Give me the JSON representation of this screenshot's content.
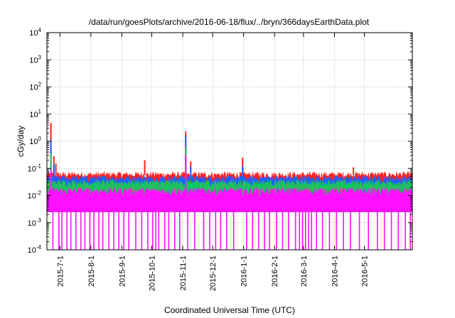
{
  "chart_data": {
    "type": "line",
    "title": "/data/run/goesPlots/archive/2016-06-18/flux/../bryn/366daysEarthData.plot",
    "xlabel": "Coordinated Universal Time (UTC)",
    "ylabel": "cGy/day",
    "y_scale": "log",
    "ylim": [
      0.0001,
      10000
    ],
    "xlim": [
      "2015-06-18",
      "2016-06-18"
    ],
    "grid": true,
    "legend": "none",
    "y_ticks": [
      {
        "value": 0.0001,
        "base": "10",
        "exp": "-4"
      },
      {
        "value": 0.001,
        "base": "10",
        "exp": "-3"
      },
      {
        "value": 0.01,
        "base": "10",
        "exp": "-2"
      },
      {
        "value": 0.1,
        "base": "10",
        "exp": "-1"
      },
      {
        "value": 1,
        "base": "10",
        "exp": "0"
      },
      {
        "value": 10,
        "base": "10",
        "exp": "1"
      },
      {
        "value": 100,
        "base": "10",
        "exp": "2"
      },
      {
        "value": 1000,
        "base": "10",
        "exp": "3"
      },
      {
        "value": 10000,
        "base": "10",
        "exp": "4"
      }
    ],
    "x_ticks": [
      {
        "label": "2015-7-1",
        "date": "2015-07-01"
      },
      {
        "label": "2015-8-1",
        "date": "2015-08-01"
      },
      {
        "label": "2015-9-1",
        "date": "2015-09-01"
      },
      {
        "label": "2015-10-1",
        "date": "2015-10-01"
      },
      {
        "label": "2015-11-1",
        "date": "2015-11-01"
      },
      {
        "label": "2015-12-1",
        "date": "2015-12-01"
      },
      {
        "label": "2016-1-1",
        "date": "2016-01-01"
      },
      {
        "label": "2016-2-1",
        "date": "2016-02-01"
      },
      {
        "label": "2016-3-1",
        "date": "2016-03-01"
      },
      {
        "label": "2016-4-1",
        "date": "2016-04-01"
      },
      {
        "label": "2016-5-1",
        "date": "2016-05-01"
      }
    ],
    "series": [
      {
        "color": "#ff2020",
        "baseline": 0.055,
        "spikes": [
          {
            "date": "2015-06-22",
            "value": 4.8
          },
          {
            "date": "2015-06-25",
            "value": 0.28
          },
          {
            "date": "2015-06-27",
            "value": 0.15
          },
          {
            "date": "2015-09-24",
            "value": 0.2
          },
          {
            "date": "2015-11-04",
            "value": 2.3
          },
          {
            "date": "2015-11-09",
            "value": 0.18
          },
          {
            "date": "2015-12-31",
            "value": 0.25
          },
          {
            "date": "2016-04-20",
            "value": 0.11
          }
        ]
      },
      {
        "color": "#2060ff",
        "baseline": 0.04,
        "spikes": [
          {
            "date": "2015-06-22",
            "value": 1.1
          },
          {
            "date": "2015-06-25",
            "value": 0.15
          },
          {
            "date": "2015-11-04",
            "value": 1.6
          },
          {
            "date": "2015-11-09",
            "value": 0.12
          },
          {
            "date": "2015-12-31",
            "value": 0.12
          }
        ]
      },
      {
        "color": "#20c060",
        "baseline": 0.028,
        "spikes": [
          {
            "date": "2015-06-22",
            "value": 0.35
          },
          {
            "date": "2015-11-04",
            "value": 0.6
          }
        ]
      },
      {
        "color": "#ff10ff",
        "baseline": 0.012,
        "floor": 0.0025,
        "spikes": [
          {
            "date": "2015-06-22",
            "value": 0.09
          },
          {
            "date": "2015-11-04",
            "value": 0.3
          }
        ],
        "dropouts": [
          "2015-06-24",
          "2015-06-30",
          "2015-07-03",
          "2015-07-08",
          "2015-07-12",
          "2015-07-17",
          "2015-07-22",
          "2015-07-26",
          "2015-07-31",
          "2015-08-04",
          "2015-08-09",
          "2015-08-13",
          "2015-08-19",
          "2015-08-24",
          "2015-08-29",
          "2015-09-03",
          "2015-09-08",
          "2015-09-15",
          "2015-09-21",
          "2015-09-27",
          "2015-10-02",
          "2015-10-05",
          "2015-10-08",
          "2015-10-14",
          "2015-10-18",
          "2015-10-24",
          "2015-10-29",
          "2015-11-06",
          "2015-11-13",
          "2015-11-22",
          "2015-11-28",
          "2015-12-04",
          "2015-12-09",
          "2015-12-15",
          "2015-12-22",
          "2016-01-04",
          "2016-01-10",
          "2016-01-16",
          "2016-01-22",
          "2016-01-27",
          "2016-02-03",
          "2016-02-09",
          "2016-02-15",
          "2016-02-22",
          "2016-02-26",
          "2016-02-29",
          "2016-03-03",
          "2016-03-06",
          "2016-03-09",
          "2016-03-14",
          "2016-03-20",
          "2016-03-27",
          "2016-04-03",
          "2016-04-10",
          "2016-04-17",
          "2016-04-26",
          "2016-05-05",
          "2016-05-14",
          "2016-05-21",
          "2016-05-28",
          "2016-06-04",
          "2016-06-11",
          "2016-06-16"
        ]
      }
    ]
  }
}
